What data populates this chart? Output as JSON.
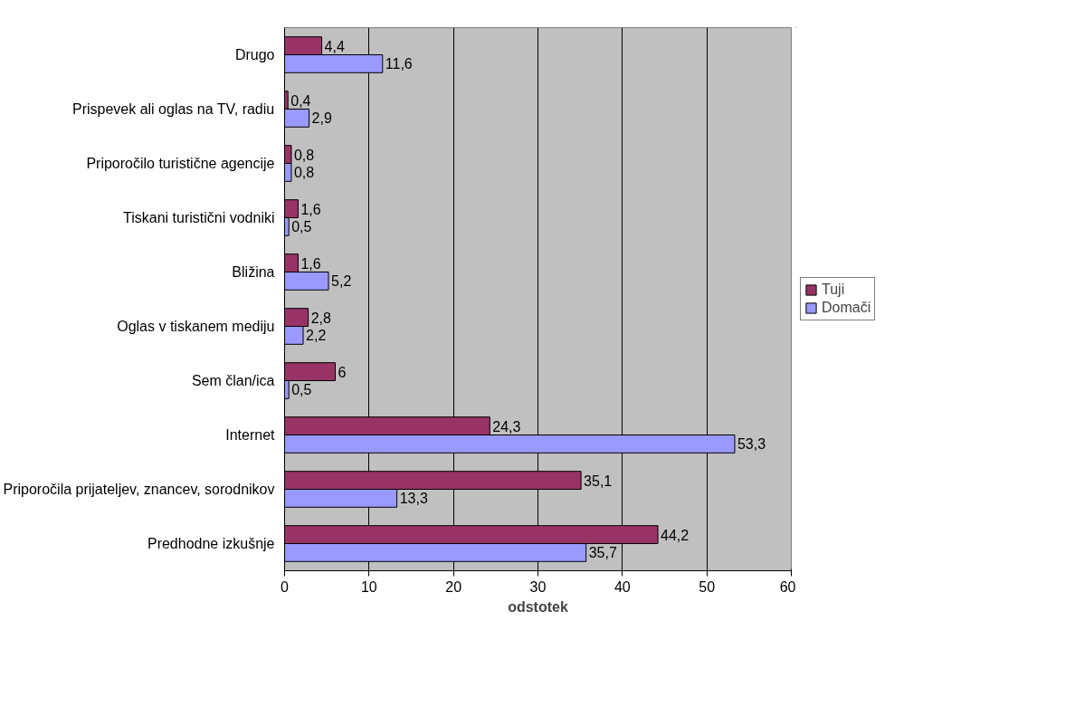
{
  "chart_data": {
    "type": "bar",
    "orientation": "horizontal",
    "xlabel": "odstotek",
    "categories": [
      "Drugo",
      "Prispevek ali oglas na TV, radiu",
      "Priporočilo turistične agencije",
      "Tiskani turistični vodniki",
      "Bližina",
      "Oglas v tiskanem mediju",
      "Sem član/ica",
      "Internet",
      "Priporočila prijateljev, znancev, sorodnikov",
      "Predhodne izkušnje"
    ],
    "series": [
      {
        "name": "Tuji",
        "color": "#993366",
        "values": [
          4.4,
          0.4,
          0.8,
          1.6,
          1.6,
          2.8,
          6,
          24.3,
          35.1,
          44.2
        ],
        "value_labels": [
          "4,4",
          "0,4",
          "0,8",
          "1,6",
          "1,6",
          "2,8",
          "6",
          "24,3",
          "35,1",
          "44,2"
        ]
      },
      {
        "name": "Domači",
        "color": "#9999ff",
        "values": [
          11.6,
          2.9,
          0.8,
          0.5,
          5.2,
          2.2,
          0.5,
          53.3,
          13.3,
          35.7
        ],
        "value_labels": [
          "11,6",
          "2,9",
          "0,8",
          "0,5",
          "5,2",
          "2,2",
          "0,5",
          "53,3",
          "13,3",
          "35,7"
        ]
      }
    ],
    "xlim": [
      0,
      60
    ],
    "xticks": [
      0,
      10,
      20,
      30,
      40,
      50,
      60
    ],
    "grid": "x",
    "legend": "right"
  }
}
